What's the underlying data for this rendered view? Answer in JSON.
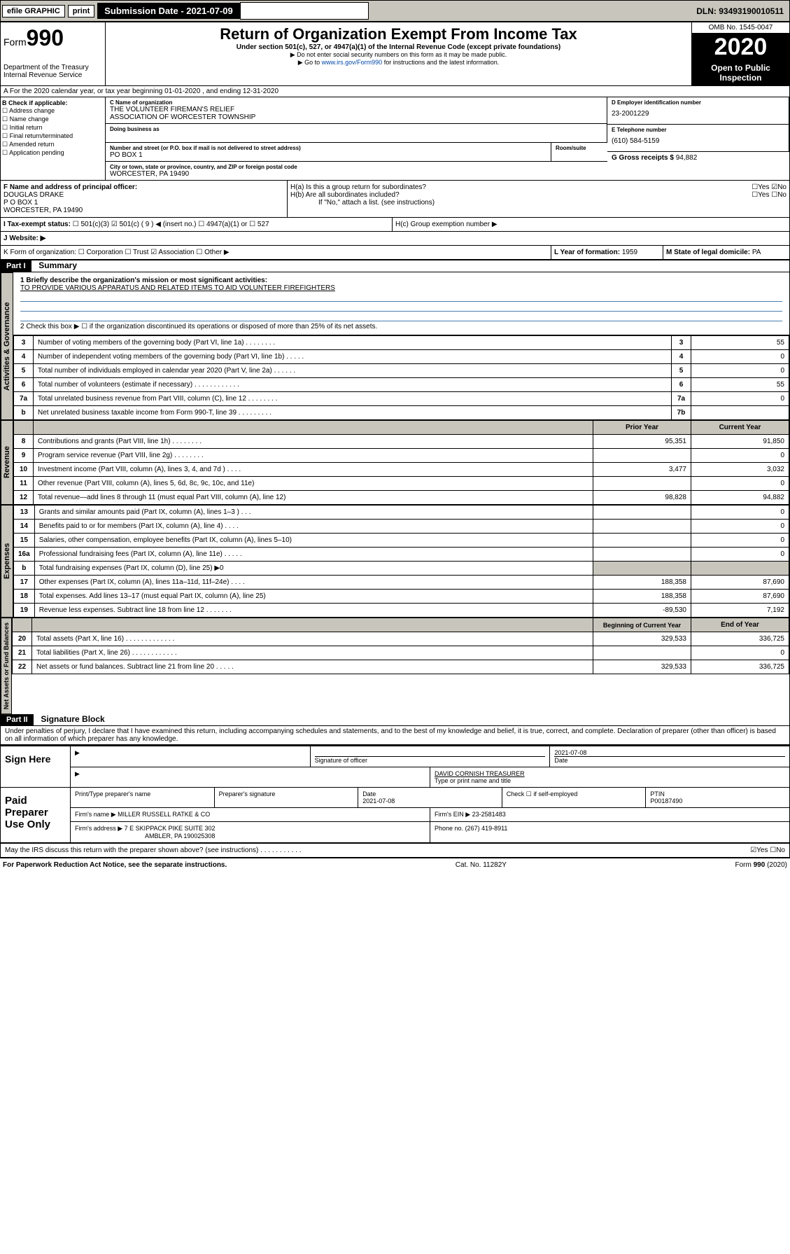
{
  "topbar": {
    "efile": "efile GRAPHIC",
    "print": "print",
    "sub_label": "Submission Date - 2021-07-09",
    "dln": "DLN: 93493190010511"
  },
  "header": {
    "form": "Form",
    "form_num": "990",
    "dept": "Department of the Treasury\nInternal Revenue Service",
    "title": "Return of Organization Exempt From Income Tax",
    "subtitle": "Under section 501(c), 527, or 4947(a)(1) of the Internal Revenue Code (except private foundations)",
    "note1": "▶ Do not enter social security numbers on this form as it may be made public.",
    "note2_pre": "▶ Go to ",
    "note2_link": "www.irs.gov/Form990",
    "note2_post": " for instructions and the latest information.",
    "omb": "OMB No. 1545-0047",
    "year": "2020",
    "open": "Open to Public Inspection"
  },
  "period": "A For the 2020 calendar year, or tax year beginning 01-01-2020     , and ending 12-31-2020",
  "box_b": {
    "label": "B Check if applicable:",
    "items": [
      "☐ Address change",
      "☐ Name change",
      "☐ Initial return",
      "☐ Final return/terminated",
      "☐ Amended return",
      "☐ Application pending"
    ]
  },
  "box_c": {
    "label": "C Name of organization",
    "name": "THE VOLUNTEER FIREMAN'S RELIEF\nASSOCIATION OF WORCESTER TOWNSHIP",
    "dba_label": "Doing business as",
    "addr_label": "Number and street (or P.O. box if mail is not delivered to street address)",
    "room_label": "Room/suite",
    "addr": "PO BOX 1",
    "city_label": "City or town, state or province, country, and ZIP or foreign postal code",
    "city": "WORCESTER, PA  19490"
  },
  "box_d": {
    "label": "D Employer identification number",
    "value": "23-2001229"
  },
  "box_e": {
    "label": "E Telephone number",
    "value": "(610) 584-5159"
  },
  "box_g": {
    "label": "G Gross receipts $",
    "value": "94,882"
  },
  "box_f": {
    "label": "F  Name and address of principal officer:",
    "name": "DOUGLAS DRAKE",
    "addr1": "P O BOX 1",
    "addr2": "WORCESTER, PA  19490"
  },
  "box_h": {
    "a": "H(a)  Is this a group return for subordinates?",
    "a_ans": "☐Yes ☑No",
    "b": "H(b)  Are all subordinates included?",
    "b_ans": "☐Yes ☐No",
    "b_note": "If \"No,\" attach a list. (see instructions)",
    "c": "H(c)  Group exemption number ▶"
  },
  "box_i": {
    "label": "I    Tax-exempt status:",
    "opts": "☐ 501(c)(3)   ☑ 501(c) ( 9 ) ◀ (insert no.)    ☐ 4947(a)(1) or   ☐ 527"
  },
  "box_j": {
    "label": "J    Website: ▶"
  },
  "box_k": {
    "label": "K Form of organization:  ☐ Corporation  ☐ Trust  ☑ Association  ☐ Other ▶"
  },
  "box_l": {
    "label": "L Year of formation:",
    "value": "1959"
  },
  "box_m": {
    "label": "M State of legal domicile:",
    "value": "PA"
  },
  "part1": {
    "num": "Part I",
    "title": "Summary"
  },
  "summary": {
    "line1_label": "1  Briefly describe the organization's mission or most significant activities:",
    "line1_text": "TO PROVIDE VARIOUS APPARATUS AND RELATED ITEMS TO AID VOLUNTEER FIREFIGHTERS",
    "line2": "2    Check this box ▶ ☐  if the organization discontinued its operations or disposed of more than 25% of its net assets.",
    "governance_label": "Activities & Governance",
    "revenue_label": "Revenue",
    "expenses_label": "Expenses",
    "netassets_label": "Net Assets or Fund Balances",
    "rows_gov": [
      {
        "n": "3",
        "d": "Number of voting members of the governing body (Part VI, line 1a)   .    .    .    .    .    .    .    .",
        "c": "3",
        "v": "55"
      },
      {
        "n": "4",
        "d": "Number of independent voting members of the governing body (Part VI, line 1b)    .    .    .    .    .",
        "c": "4",
        "v": "0"
      },
      {
        "n": "5",
        "d": "Total number of individuals employed in calendar year 2020 (Part V, line 2a)   .    .    .    .    .    .",
        "c": "5",
        "v": "0"
      },
      {
        "n": "6",
        "d": "Total number of volunteers (estimate if necessary)    .    .    .    .    .    .    .    .    .    .    .    .",
        "c": "6",
        "v": "55"
      },
      {
        "n": "7a",
        "d": "Total unrelated business revenue from Part VIII, column (C), line 12   .    .    .    .    .    .    .    .",
        "c": "7a",
        "v": "0"
      },
      {
        "n": "b",
        "d": "Net unrelated business taxable income from Form 990-T, line 39   .    .    .    .    .    .    .    .    .",
        "c": "7b",
        "v": ""
      }
    ],
    "hdr_prior": "Prior Year",
    "hdr_current": "Current Year",
    "rows_rev": [
      {
        "n": "8",
        "d": "Contributions and grants (Part VIII, line 1h)    .    .    .    .    .    .    .    .",
        "p": "95,351",
        "c": "91,850"
      },
      {
        "n": "9",
        "d": "Program service revenue (Part VIII, line 2g)    .    .    .    .    .    .    .    .",
        "p": "",
        "c": "0"
      },
      {
        "n": "10",
        "d": "Investment income (Part VIII, column (A), lines 3, 4, and 7d )   .    .    .    .",
        "p": "3,477",
        "c": "3,032"
      },
      {
        "n": "11",
        "d": "Other revenue (Part VIII, column (A), lines 5, 6d, 8c, 9c, 10c, and 11e)",
        "p": "",
        "c": "0"
      },
      {
        "n": "12",
        "d": "Total revenue—add lines 8 through 11 (must equal Part VIII, column (A), line 12)",
        "p": "98,828",
        "c": "94,882"
      }
    ],
    "rows_exp": [
      {
        "n": "13",
        "d": "Grants and similar amounts paid (Part IX, column (A), lines 1–3 )   .    .    .",
        "p": "",
        "c": "0"
      },
      {
        "n": "14",
        "d": "Benefits paid to or for members (Part IX, column (A), line 4)   .    .    .    .",
        "p": "",
        "c": "0"
      },
      {
        "n": "15",
        "d": "Salaries, other compensation, employee benefits (Part IX, column (A), lines 5–10)",
        "p": "",
        "c": "0"
      },
      {
        "n": "16a",
        "d": "Professional fundraising fees (Part IX, column (A), line 11e)   .    .    .    .    .",
        "p": "",
        "c": "0"
      },
      {
        "n": "b",
        "d": "Total fundraising expenses (Part IX, column (D), line 25) ▶0",
        "p": "SHADE",
        "c": "SHADE"
      },
      {
        "n": "17",
        "d": "Other expenses (Part IX, column (A), lines 11a–11d, 11f–24e)    .    .    .    .",
        "p": "188,358",
        "c": "87,690"
      },
      {
        "n": "18",
        "d": "Total expenses. Add lines 13–17 (must equal Part IX, column (A), line 25)",
        "p": "188,358",
        "c": "87,690"
      },
      {
        "n": "19",
        "d": "Revenue less expenses. Subtract line 18 from line 12   .    .    .    .    .    .    .",
        "p": "-89,530",
        "c": "7,192"
      }
    ],
    "hdr_beg": "Beginning of Current Year",
    "hdr_end": "End of Year",
    "rows_net": [
      {
        "n": "20",
        "d": "Total assets (Part X, line 16)    .    .    .    .    .    .    .    .    .    .    .    .    .",
        "p": "329,533",
        "c": "336,725"
      },
      {
        "n": "21",
        "d": "Total liabilities (Part X, line 26)    .    .    .    .    .    .    .    .    .    .    .    .",
        "p": "",
        "c": "0"
      },
      {
        "n": "22",
        "d": "Net assets or fund balances. Subtract line 21 from line 20   .    .    .    .    .",
        "p": "329,533",
        "c": "336,725"
      }
    ]
  },
  "part2": {
    "num": "Part II",
    "title": "Signature Block"
  },
  "perjury": "Under penalties of perjury, I declare that I have examined this return, including accompanying schedules and statements, and to the best of my knowledge and belief, it is true, correct, and complete. Declaration of preparer (other than officer) is based on all information of which preparer has any knowledge.",
  "sign": {
    "here": "Sign Here",
    "sig_officer": "Signature of officer",
    "date": "2021-07-08",
    "date_label": "Date",
    "name": "DAVID CORNISH TREASURER",
    "name_label": "Type or print name and title"
  },
  "paid": {
    "label": "Paid Preparer Use Only",
    "h1": "Print/Type preparer's name",
    "h2": "Preparer's signature",
    "h3": "Date",
    "h3v": "2021-07-08",
    "h4": "Check ☐ if self-employed",
    "h5": "PTIN",
    "h5v": "P00187490",
    "firm_name_l": "Firm's name    ▶",
    "firm_name": "MILLER RUSSELL RATKE & CO",
    "firm_ein_l": "Firm's EIN ▶",
    "firm_ein": "23-2581483",
    "firm_addr_l": "Firm's address ▶",
    "firm_addr": "7 E SKIPPACK PIKE SUITE 302",
    "firm_addr2": "AMBLER, PA  190025308",
    "phone_l": "Phone no.",
    "phone": "(267) 419-8911"
  },
  "discuss": "May the IRS discuss this return with the preparer shown above? (see instructions)    .    .    .    .    .    .    .    .    .    .    .",
  "discuss_ans": "☑Yes  ☐No",
  "footer": {
    "left": "For Paperwork Reduction Act Notice, see the separate instructions.",
    "mid": "Cat. No. 11282Y",
    "right": "Form 990 (2020)"
  }
}
